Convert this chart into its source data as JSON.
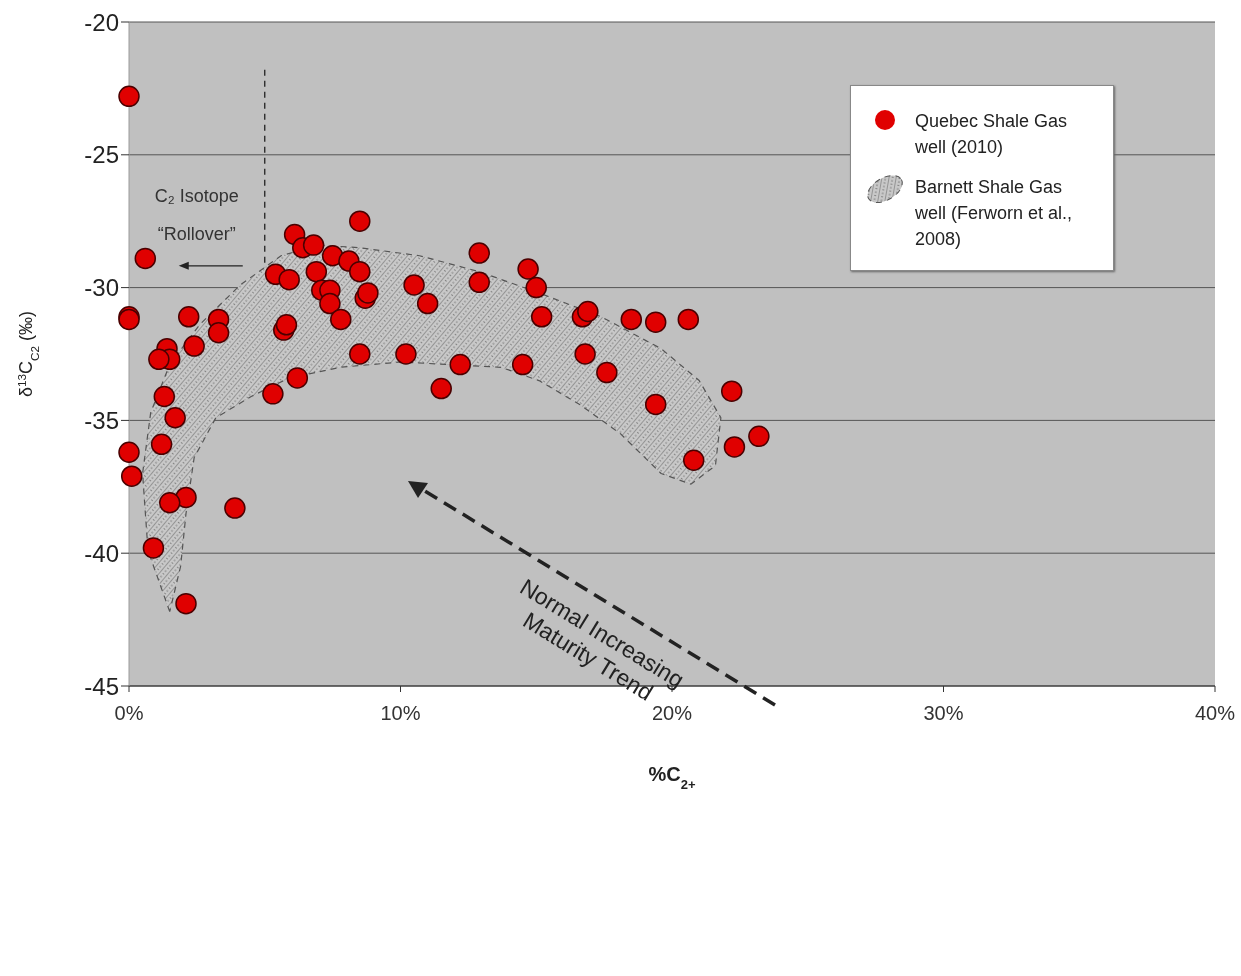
{
  "chart_data": {
    "type": "scatter",
    "xlabel": "%C$_{2+}$",
    "ylabel": "δ$^{13}$C$_{C2}$  (‰)",
    "xlim": [
      0,
      40
    ],
    "xticks": [
      {
        "value": 0,
        "label": "0%"
      },
      {
        "value": 10,
        "label": "10%"
      },
      {
        "value": 20,
        "label": "20%"
      },
      {
        "value": 30,
        "label": "30%"
      },
      {
        "value": 40,
        "label": "40%"
      }
    ],
    "ylim": [
      -45,
      -20
    ],
    "yticks": [
      -45,
      -40,
      -35,
      -30,
      -25,
      -20
    ],
    "grid": "y",
    "legend": "top right",
    "marker": "circle",
    "ref_lines": [
      {
        "axis": "x",
        "value": 5,
        "label": "C₂ Isotope “Rollover”",
        "line_style": "dashed",
        "color": "#222222"
      }
    ],
    "annotations": [
      "Normal Increasing Maturity Trend"
    ],
    "series": [
      {
        "name": "Quebec Shale Gas well (2010)",
        "type": "scatter",
        "color": "#e00000",
        "x": [
          0.0,
          0.6,
          0.0,
          0.0,
          0.0,
          0.1,
          0.9,
          2.1,
          2.1,
          1.5,
          3.9,
          1.2,
          1.7,
          1.3,
          1.4,
          1.5,
          1.1,
          2.4,
          2.2,
          3.3,
          3.3,
          5.3,
          5.4,
          5.7,
          5.8,
          5.9,
          6.1,
          6.2,
          6.4,
          6.8,
          6.9,
          7.1,
          7.4,
          7.4,
          7.5,
          7.8,
          8.1,
          8.5,
          8.5,
          8.5,
          8.7,
          8.8,
          10.2,
          10.5,
          11.0,
          11.5,
          12.2,
          12.9,
          12.9,
          14.5,
          14.7,
          15.0,
          15.2,
          16.7,
          16.9,
          16.8,
          17.6,
          18.5,
          19.4,
          19.4,
          20.6,
          20.8,
          22.2,
          22.3,
          23.2
        ],
        "values": [
          -22.8,
          -28.9,
          -31.1,
          -31.2,
          -36.2,
          -37.1,
          -39.8,
          -41.9,
          -37.9,
          -38.1,
          -38.3,
          -35.9,
          -34.9,
          -34.1,
          -32.3,
          -32.7,
          -32.7,
          -32.2,
          -31.1,
          -31.2,
          -31.7,
          -34.0,
          -29.5,
          -31.6,
          -31.4,
          -29.7,
          -28.0,
          -33.4,
          -28.5,
          -28.4,
          -29.4,
          -30.1,
          -30.1,
          -30.6,
          -28.8,
          -31.2,
          -29.0,
          -29.4,
          -27.5,
          -32.5,
          -30.4,
          -30.2,
          -32.5,
          -29.9,
          -30.6,
          -33.8,
          -32.9,
          -28.7,
          -29.8,
          -32.9,
          -29.3,
          -30.0,
          -31.1,
          -31.1,
          -30.9,
          -32.5,
          -33.2,
          -31.2,
          -31.3,
          -34.4,
          -31.2,
          -36.5,
          -33.9,
          -36.0,
          -35.6
        ]
      },
      {
        "name": "Barnett Shale Gas well (Ferworn et al., 2008)",
        "type": "area",
        "marker": "none",
        "line_style": "dashed",
        "color": "#555555",
        "x": [
          1.5,
          0.7,
          0.5,
          0.8,
          1.5,
          2.6,
          4.1,
          5.6,
          7.0,
          8.5,
          10.7,
          12.9,
          15.1,
          17.4,
          19.6,
          21.0,
          21.8,
          21.6,
          20.7,
          19.6,
          18.1,
          16.6,
          15.1,
          13.7,
          11.8,
          10.0,
          7.8,
          5.9,
          4.5,
          3.2,
          2.4,
          2.1,
          1.9,
          1.5
        ],
        "values": [
          -42.2,
          -39.9,
          -37.0,
          -34.7,
          -32.9,
          -31.4,
          -29.9,
          -28.8,
          -28.4,
          -28.5,
          -28.8,
          -29.4,
          -30.2,
          -31.1,
          -32.3,
          -33.5,
          -34.9,
          -36.7,
          -37.4,
          -37.0,
          -35.5,
          -34.4,
          -33.5,
          -33.0,
          -32.9,
          -32.8,
          -33.0,
          -33.4,
          -34.1,
          -34.9,
          -36.4,
          -38.5,
          -40.5,
          -42.2
        ]
      }
    ]
  }
}
